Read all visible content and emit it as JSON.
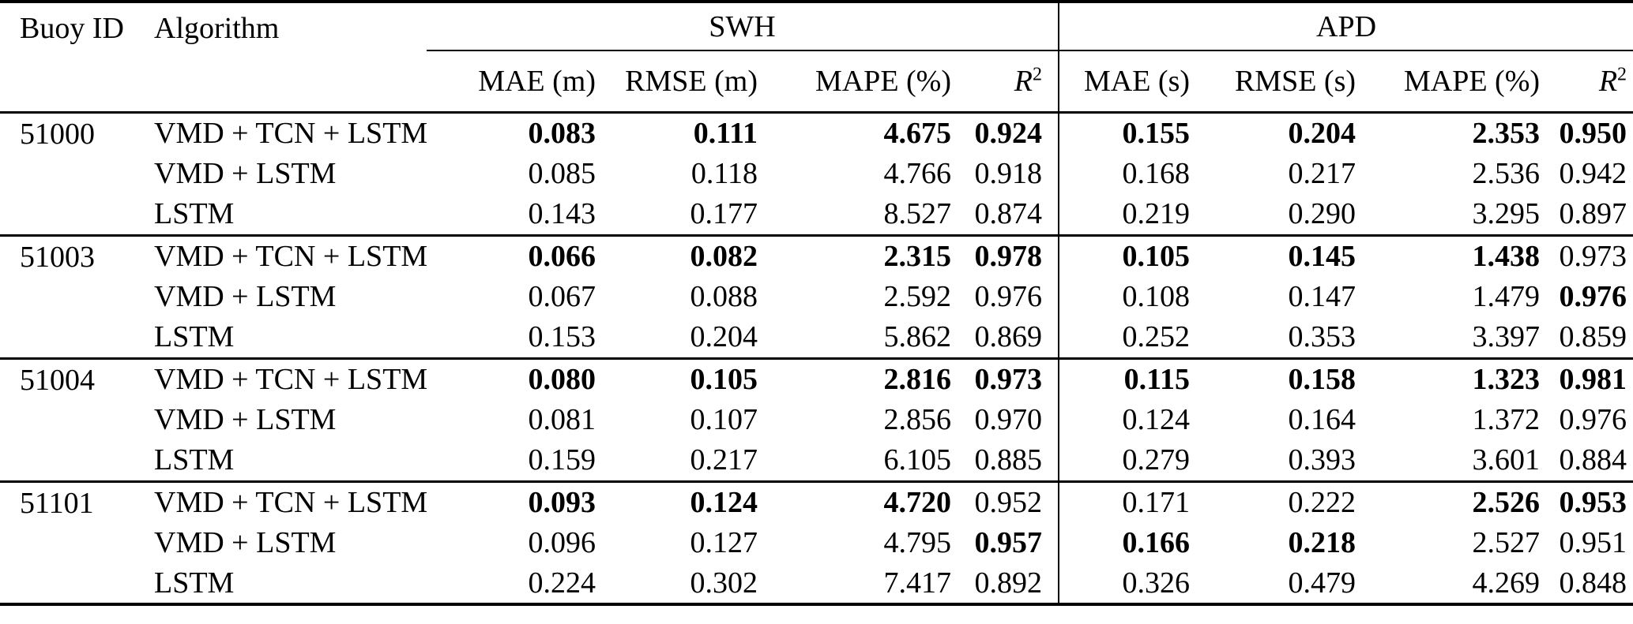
{
  "table": {
    "header": {
      "buoy_id": "Buoy ID",
      "algorithm": "Algorithm",
      "swh": "SWH",
      "apd": "APD",
      "r2_base": "R",
      "r2_sup": "2",
      "swh_metrics": [
        "MAE (m)",
        "RMSE (m)",
        "MAPE (%)"
      ],
      "apd_metrics": [
        "MAE (s)",
        "RMSE (s)",
        "MAPE (%)"
      ]
    },
    "groups": [
      {
        "buoy_id": "51000",
        "rows": [
          {
            "algorithm": "VMD + TCN + LSTM",
            "values": [
              "0.083",
              "0.111",
              "4.675",
              "0.924",
              "0.155",
              "0.204",
              "2.353",
              "0.950"
            ],
            "bold": [
              true,
              true,
              true,
              true,
              true,
              true,
              true,
              true
            ]
          },
          {
            "algorithm": "VMD + LSTM",
            "values": [
              "0.085",
              "0.118",
              "4.766",
              "0.918",
              "0.168",
              "0.217",
              "2.536",
              "0.942"
            ],
            "bold": [
              false,
              false,
              false,
              false,
              false,
              false,
              false,
              false
            ]
          },
          {
            "algorithm": "LSTM",
            "values": [
              "0.143",
              "0.177",
              "8.527",
              "0.874",
              "0.219",
              "0.290",
              "3.295",
              "0.897"
            ],
            "bold": [
              false,
              false,
              false,
              false,
              false,
              false,
              false,
              false
            ]
          }
        ]
      },
      {
        "buoy_id": "51003",
        "rows": [
          {
            "algorithm": "VMD + TCN + LSTM",
            "values": [
              "0.066",
              "0.082",
              "2.315",
              "0.978",
              "0.105",
              "0.145",
              "1.438",
              "0.973"
            ],
            "bold": [
              true,
              true,
              true,
              true,
              true,
              true,
              true,
              false
            ]
          },
          {
            "algorithm": "VMD + LSTM",
            "values": [
              "0.067",
              "0.088",
              "2.592",
              "0.976",
              "0.108",
              "0.147",
              "1.479",
              "0.976"
            ],
            "bold": [
              false,
              false,
              false,
              false,
              false,
              false,
              false,
              true
            ]
          },
          {
            "algorithm": "LSTM",
            "values": [
              "0.153",
              "0.204",
              "5.862",
              "0.869",
              "0.252",
              "0.353",
              "3.397",
              "0.859"
            ],
            "bold": [
              false,
              false,
              false,
              false,
              false,
              false,
              false,
              false
            ]
          }
        ]
      },
      {
        "buoy_id": "51004",
        "rows": [
          {
            "algorithm": "VMD + TCN + LSTM",
            "values": [
              "0.080",
              "0.105",
              "2.816",
              "0.973",
              "0.115",
              "0.158",
              "1.323",
              "0.981"
            ],
            "bold": [
              true,
              true,
              true,
              true,
              true,
              true,
              true,
              true
            ]
          },
          {
            "algorithm": "VMD + LSTM",
            "values": [
              "0.081",
              "0.107",
              "2.856",
              "0.970",
              "0.124",
              "0.164",
              "1.372",
              "0.976"
            ],
            "bold": [
              false,
              false,
              false,
              false,
              false,
              false,
              false,
              false
            ]
          },
          {
            "algorithm": "LSTM",
            "values": [
              "0.159",
              "0.217",
              "6.105",
              "0.885",
              "0.279",
              "0.393",
              "3.601",
              "0.884"
            ],
            "bold": [
              false,
              false,
              false,
              false,
              false,
              false,
              false,
              false
            ]
          }
        ]
      },
      {
        "buoy_id": "51101",
        "rows": [
          {
            "algorithm": "VMD + TCN + LSTM",
            "values": [
              "0.093",
              "0.124",
              "4.720",
              "0.952",
              "0.171",
              "0.222",
              "2.526",
              "0.953"
            ],
            "bold": [
              true,
              true,
              true,
              false,
              false,
              false,
              true,
              true
            ]
          },
          {
            "algorithm": "VMD + LSTM",
            "values": [
              "0.096",
              "0.127",
              "4.795",
              "0.957",
              "0.166",
              "0.218",
              "2.527",
              "0.951"
            ],
            "bold": [
              false,
              false,
              false,
              true,
              true,
              true,
              false,
              false
            ]
          },
          {
            "algorithm": "LSTM",
            "values": [
              "0.224",
              "0.302",
              "7.417",
              "0.892",
              "0.326",
              "0.479",
              "4.269",
              "0.848"
            ],
            "bold": [
              false,
              false,
              false,
              false,
              false,
              false,
              false,
              false
            ]
          }
        ]
      }
    ]
  }
}
